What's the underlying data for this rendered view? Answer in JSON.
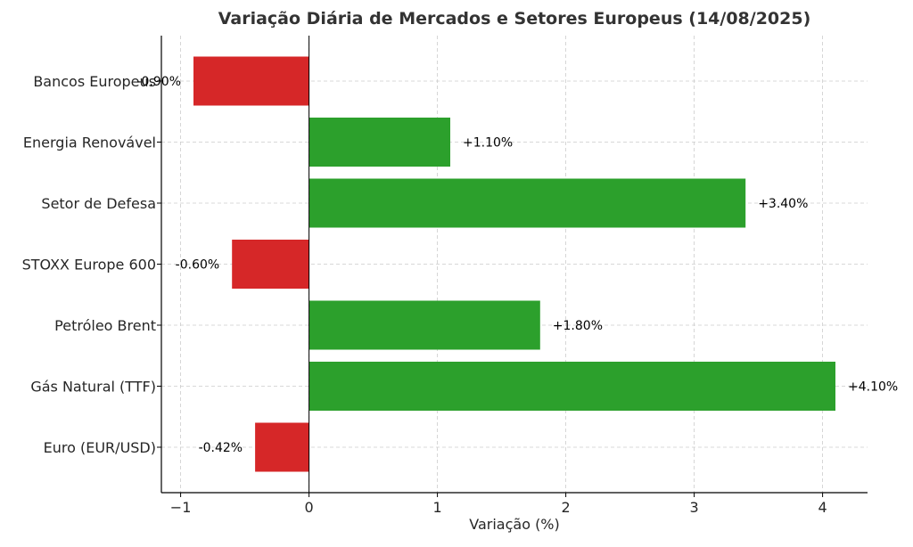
{
  "chart_data": {
    "type": "bar",
    "orientation": "horizontal",
    "title": "Variação Diária de Mercados e Setores Europeus (14/08/2025)",
    "xlabel": "Variação (%)",
    "ylabel": "",
    "categories": [
      "Bancos Europeus",
      "Energia Renovável",
      "Setor de Defesa",
      "STOXX Europe 600",
      "Petróleo Brent",
      "Gás Natural (TTF)",
      "Euro (EUR/USD)"
    ],
    "values": [
      -0.9,
      1.1,
      3.4,
      -0.6,
      1.8,
      4.1,
      -0.42
    ],
    "data_labels": [
      "-0.90%",
      "+1.10%",
      "+3.40%",
      "-0.60%",
      "+1.80%",
      "+4.10%",
      "-0.42%"
    ],
    "xlim": [
      -1.15,
      4.35
    ],
    "xticks": [
      -1,
      0,
      1,
      2,
      3,
      4
    ],
    "xtick_labels": [
      "−1",
      "0",
      "1",
      "2",
      "3",
      "4"
    ],
    "grid": true,
    "colors": {
      "positive": "#2ca02c",
      "negative": "#d62728",
      "grid": "#cccccc",
      "axis": "#000000"
    }
  }
}
